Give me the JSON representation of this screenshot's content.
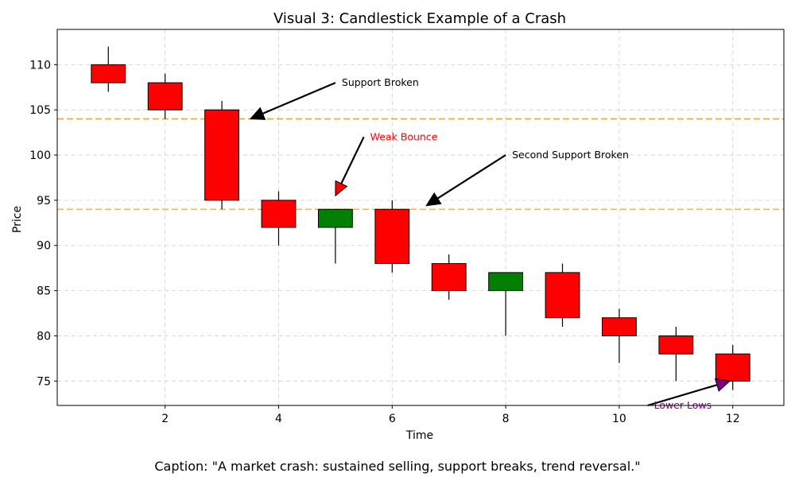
{
  "chart_data": {
    "type": "candlestick",
    "title": "Visual 3: Candlestick Example of a Crash",
    "xlabel": "Time",
    "ylabel": "Price",
    "xlim": [
      0.1,
      12.9
    ],
    "ylim": [
      72.3,
      113.9
    ],
    "xticks": [
      2,
      4,
      6,
      8,
      10,
      12
    ],
    "yticks": [
      75,
      80,
      85,
      90,
      95,
      100,
      105,
      110
    ],
    "grid": true,
    "candles": [
      {
        "t": 1,
        "open": 110,
        "high": 112,
        "low": 107,
        "close": 108
      },
      {
        "t": 2,
        "open": 108,
        "high": 109,
        "low": 104,
        "close": 105
      },
      {
        "t": 3,
        "open": 105,
        "high": 106,
        "low": 94,
        "close": 95
      },
      {
        "t": 4,
        "open": 95,
        "high": 96,
        "low": 90,
        "close": 92
      },
      {
        "t": 5,
        "open": 92,
        "high": 94,
        "low": 88,
        "close": 94
      },
      {
        "t": 6,
        "open": 94,
        "high": 95,
        "low": 87,
        "close": 88
      },
      {
        "t": 7,
        "open": 88,
        "high": 89,
        "low": 84,
        "close": 85
      },
      {
        "t": 8,
        "open": 85,
        "high": 87,
        "low": 80,
        "close": 87
      },
      {
        "t": 9,
        "open": 87,
        "high": 88,
        "low": 81,
        "close": 82
      },
      {
        "t": 10,
        "open": 82,
        "high": 83,
        "low": 77,
        "close": 80
      },
      {
        "t": 11,
        "open": 80,
        "high": 81,
        "low": 75,
        "close": 78
      },
      {
        "t": 12,
        "open": 78,
        "high": 79,
        "low": 74,
        "close": 75
      }
    ],
    "colors": {
      "up": "#008000",
      "down": "#ff0000",
      "support1": "#ffa500",
      "support2": "#ffb733",
      "grid": "#d0d0d0"
    },
    "support_levels": [
      104,
      94
    ],
    "annotations": [
      {
        "text": "Support Broken",
        "color": "#000000",
        "text_at": [
          5.0,
          108
        ],
        "arrow_to": [
          3.5,
          104
        ],
        "arrow_color": "#000000"
      },
      {
        "text": "Weak Bounce",
        "color": "#ff0000",
        "text_at": [
          5.5,
          102
        ],
        "arrow_to": [
          5.0,
          95.5
        ],
        "arrow_color": "#ff0000"
      },
      {
        "text": "Second Support Broken",
        "color": "#000000",
        "text_at": [
          8.0,
          100
        ],
        "arrow_to": [
          6.6,
          94.4
        ],
        "arrow_color": "#000000"
      },
      {
        "text": "Lower Lows",
        "color": "#800080",
        "text_at": [
          10.5,
          72.3
        ],
        "arrow_to": [
          11.95,
          75
        ],
        "arrow_color": "#800080"
      }
    ]
  },
  "caption": "Caption: \"A market crash: sustained selling, support breaks, trend reversal.\""
}
